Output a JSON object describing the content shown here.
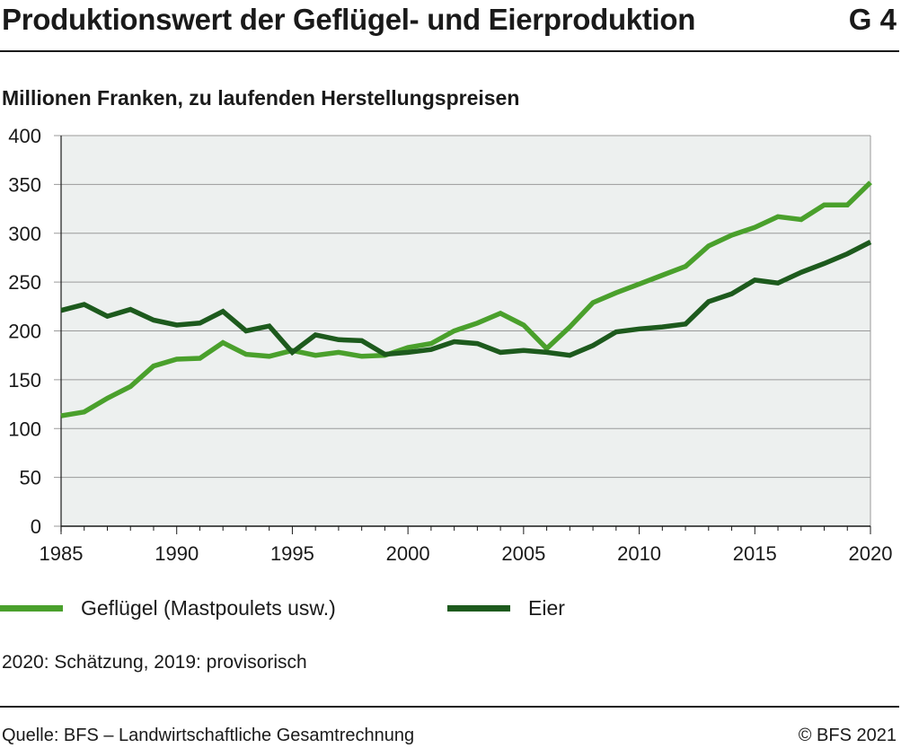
{
  "header": {
    "title": "Produktionswert der Geflügel- und Eierproduktion",
    "code": "G 4",
    "subtitle": "Millionen Franken, zu laufenden Herstellungspreisen"
  },
  "footer": {
    "note": "2020: Schätzung, 2019: provisorisch",
    "source": "Quelle: BFS – Landwirtschaftliche Gesamtrechnung",
    "copyright": "© BFS 2021"
  },
  "colors": {
    "gefluegel": "#4aa02c",
    "eier": "#1d5a1d",
    "plot_bg": "#edf0ef",
    "grid": "#9a9a9a"
  },
  "chart_data": {
    "type": "line",
    "title": "Produktionswert der Geflügel- und Eierproduktion",
    "ylabel": "Millionen Franken, zu laufenden Herstellungspreisen",
    "xlabel": "",
    "xlim": [
      1985,
      2020
    ],
    "ylim": [
      0,
      400
    ],
    "x_ticks": [
      1985,
      1990,
      1995,
      2000,
      2005,
      2010,
      2015,
      2020
    ],
    "y_ticks": [
      0,
      50,
      100,
      150,
      200,
      250,
      300,
      350,
      400
    ],
    "grid": true,
    "legend_position": "bottom",
    "x": [
      1985,
      1986,
      1987,
      1988,
      1989,
      1990,
      1991,
      1992,
      1993,
      1994,
      1995,
      1996,
      1997,
      1998,
      1999,
      2000,
      2001,
      2002,
      2003,
      2004,
      2005,
      2006,
      2007,
      2008,
      2009,
      2010,
      2011,
      2012,
      2013,
      2014,
      2015,
      2016,
      2017,
      2018,
      2019,
      2020
    ],
    "series": [
      {
        "name": "Geflügel (Mastpoulets usw.)",
        "color": "#4aa02c",
        "values": [
          113,
          117,
          131,
          143,
          164,
          171,
          172,
          188,
          176,
          174,
          180,
          175,
          178,
          174,
          175,
          183,
          187,
          200,
          208,
          218,
          206,
          182,
          204,
          229,
          239,
          248,
          257,
          266,
          287,
          298,
          306,
          317,
          314,
          329,
          329,
          352
        ]
      },
      {
        "name": "Eier",
        "color": "#1d5a1d",
        "values": [
          221,
          227,
          215,
          222,
          211,
          206,
          208,
          220,
          200,
          205,
          178,
          196,
          191,
          190,
          176,
          178,
          181,
          189,
          187,
          178,
          180,
          178,
          175,
          185,
          199,
          202,
          204,
          207,
          230,
          238,
          252,
          249,
          260,
          269,
          279,
          291
        ]
      }
    ]
  }
}
